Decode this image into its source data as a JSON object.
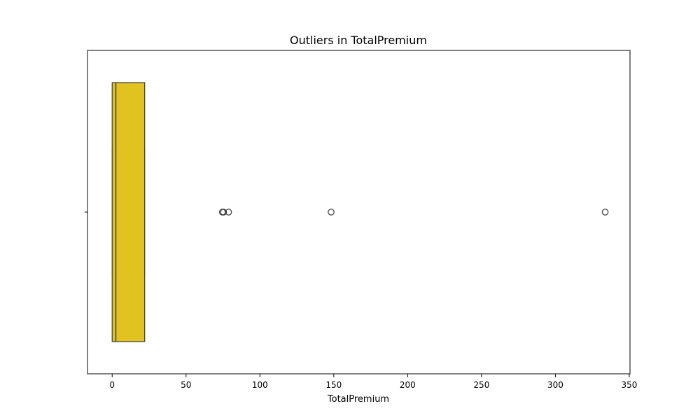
{
  "chart_data": {
    "type": "box",
    "orientation": "horizontal",
    "title": "Outliers in TotalPremium",
    "xlabel": "TotalPremium",
    "ylabel": "",
    "xlim": [
      -16.7,
      350.5
    ],
    "xticks": [
      0,
      50,
      100,
      150,
      200,
      250,
      300,
      350
    ],
    "grid": false,
    "box": {
      "min": 0,
      "q1": 0,
      "median": 2.5,
      "q3": 22,
      "max": 22,
      "fill_color": "#e1c21e",
      "edge_color": "#3f3f3f"
    },
    "outliers": [
      74.6,
      75.4,
      78.8,
      148.2,
      333.7
    ]
  }
}
